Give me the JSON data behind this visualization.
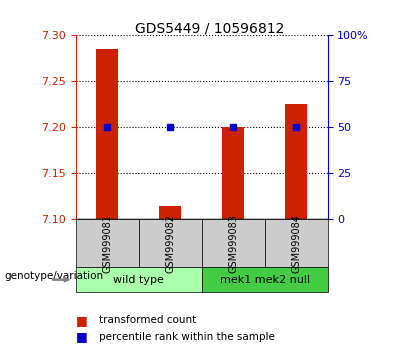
{
  "title": "GDS5449 / 10596812",
  "samples": [
    "GSM999081",
    "GSM999082",
    "GSM999083",
    "GSM999084"
  ],
  "bar_values": [
    7.285,
    7.115,
    7.2,
    7.225
  ],
  "blue_dot_values": [
    7.2,
    7.2,
    7.2,
    7.2
  ],
  "ylim": [
    7.1,
    7.3
  ],
  "yticks_left": [
    7.1,
    7.15,
    7.2,
    7.25,
    7.3
  ],
  "yticks_right": [
    0,
    25,
    50,
    75,
    100
  ],
  "bar_color": "#cc2200",
  "dot_color": "#0000cc",
  "bar_bottom": 7.1,
  "groups": [
    {
      "label": "wild type",
      "indices": [
        0,
        1
      ],
      "color": "#aaffaa"
    },
    {
      "label": "mek1 mek2 null",
      "indices": [
        2,
        3
      ],
      "color": "#44cc44"
    }
  ],
  "genotype_label": "genotype/variation",
  "legend_bar_label": "transformed count",
  "legend_dot_label": "percentile rank within the sample",
  "axis_left_color": "#cc2200",
  "axis_right_color": "#0000cc"
}
